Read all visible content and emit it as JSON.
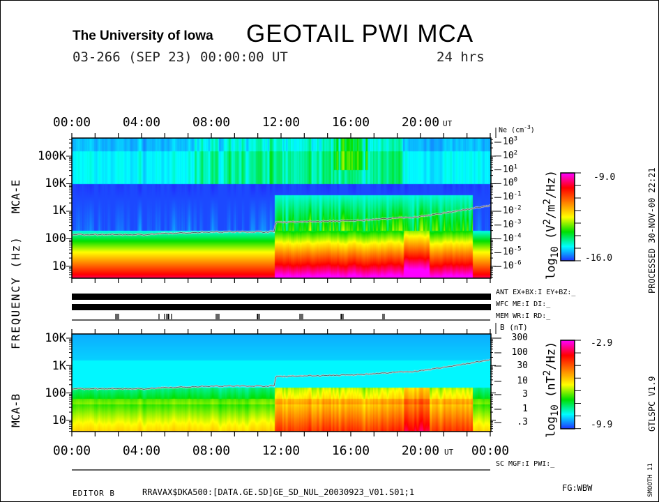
{
  "header": {
    "institution": "The University of Iowa",
    "title": "GEOTAIL PWI MCA",
    "date_line": "03-266 (SEP 23) 00:00:00 UT",
    "duration": "24 hrs"
  },
  "time_axis": {
    "labels": [
      "00:00",
      "04:00",
      "08:00",
      "12:00",
      "16:00",
      "20:00"
    ],
    "bottom_end_label": "00:00",
    "unit": "UT"
  },
  "left_label": "FREQUENCY  (Hz)",
  "status": {
    "ant": "ANT EX+BX:I EY+BZ:_",
    "wfc": "WFC ME:I    DI:_",
    "mem": "MEM WR:I    RD:_",
    "sc": "SC MGF:I    PWI:_"
  },
  "side_text": {
    "processed": "PROCESSED 30-NOV-00  22:21",
    "version": "GTLSPC   V1.9",
    "smooth": "SMOOTH 11"
  },
  "footer": {
    "editor": "EDITOR B",
    "file": "RRAVAX$DKA500:[DATA.GE.SD]GE_SD_NUL_20030923_V01.S01;1",
    "fg": "FG:WBW"
  },
  "colors": {
    "scale": [
      "#2030ff",
      "#00ffff",
      "#00e000",
      "#ffff00",
      "#ff8000",
      "#ff0000",
      "#ff00ff"
    ],
    "density_line": "#ffffff"
  },
  "chart_data": [
    {
      "type": "heatmap",
      "panel_label": "MCA-E",
      "x_range_hours": [
        0,
        24
      ],
      "yscale": "log",
      "ylim_hz": [
        5.6,
        330000
      ],
      "y_ticks": [
        "100K",
        "10K",
        "1K",
        "100",
        "10"
      ],
      "right_axis": {
        "label": "Ne (cm-3)",
        "ticks": [
          "10^3",
          "10^2",
          "10^1",
          "10^0",
          "10^-1",
          "10^-2",
          "10^-3",
          "10^-4",
          "10^-5",
          "10^-6"
        ]
      },
      "colorbar": {
        "label": "log10 (V2/m2/Hz)",
        "max": "-9.0",
        "min": "-16.0",
        "range": [
          -16.0,
          -9.0
        ]
      },
      "density_line_log10_ne": {
        "hours": [
          0,
          4,
          8,
          11.6,
          11.7,
          16,
          20,
          24
        ],
        "values": [
          -3.6,
          -3.6,
          -3.4,
          -3.4,
          -2.7,
          -2.6,
          -2.3,
          -1.5
        ]
      }
    },
    {
      "type": "heatmap",
      "panel_label": "MCA-B",
      "x_range_hours": [
        0,
        24
      ],
      "yscale": "log",
      "ylim_hz": [
        5.6,
        14000
      ],
      "y_ticks": [
        "10K",
        "1K",
        "100",
        "10"
      ],
      "right_axis": {
        "label": "B (nT)",
        "ticks": [
          "300",
          "100",
          "30",
          "10",
          "3",
          "1",
          ".3"
        ]
      },
      "colorbar": {
        "label": "log10 (nT2/Hz)",
        "max": "-2.9",
        "min": "-9.9",
        "range": [
          -9.9,
          -2.9
        ]
      }
    }
  ]
}
